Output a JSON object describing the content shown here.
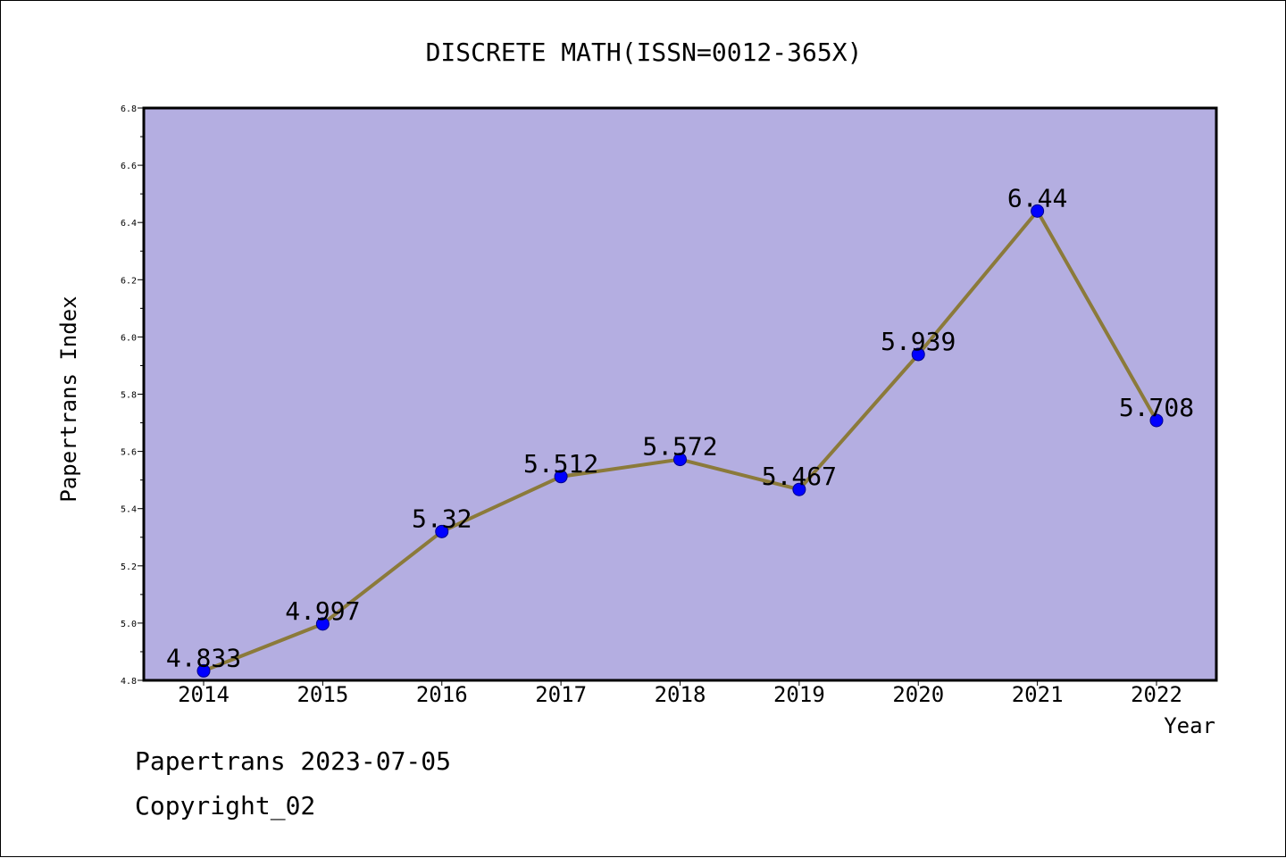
{
  "chart_data": {
    "type": "line",
    "title": "DISCRETE MATH(ISSN=0012-365X)",
    "xlabel": "Year",
    "ylabel": "Papertrans Index",
    "categories": [
      "2014",
      "2015",
      "2016",
      "2017",
      "2018",
      "2019",
      "2020",
      "2021",
      "2022"
    ],
    "series": [
      {
        "values": [
          4.833,
          4.997,
          5.32,
          5.512,
          5.572,
          5.467,
          5.939,
          6.44,
          5.708
        ],
        "data_labels": [
          "4.833",
          "4.997",
          "5.32",
          "5.512",
          "5.572",
          "5.467",
          "5.939",
          "6.44",
          "5.708"
        ]
      }
    ],
    "ylim": [
      4.8,
      6.8
    ],
    "yticks": [
      "4.8",
      "5.0",
      "5.2",
      "5.4",
      "5.6",
      "5.8",
      "6.0",
      "6.2",
      "6.4",
      "6.6",
      "6.8"
    ],
    "grid": false,
    "legend": "none",
    "colors": {
      "plot_background": "#b4aee1",
      "line": "#8b7a3a",
      "marker": "#0000ff",
      "axis": "#000000"
    }
  },
  "footer": {
    "line1": "Papertrans 2023-07-05",
    "line2": "Copyright_02"
  }
}
